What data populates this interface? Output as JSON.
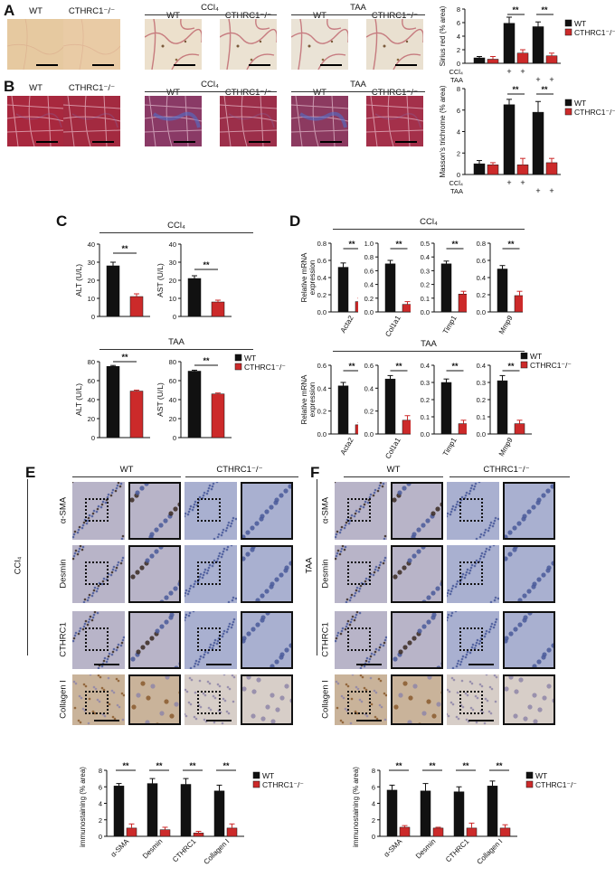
{
  "panels": {
    "A": {
      "label": "A",
      "photo_labels": [
        "WT",
        "CTHRC1⁻/⁻",
        "WT",
        "CTHRC1⁻/⁻",
        "WT",
        "CTHRC1⁻/⁻"
      ],
      "group_ccl4": "CCl₄",
      "group_taa": "TAA",
      "photo_colors": [
        "#e6c9a0",
        "#e9cba5",
        "#ece0cc",
        "#ebe2d2",
        "#eae3d6",
        "#e9e0d0"
      ]
    },
    "B": {
      "label": "B",
      "photo_labels": [
        "WT",
        "CTHRC1⁻/⁻",
        "WT",
        "CTHRC1⁻/⁻",
        "WT",
        "CTHRC1⁻/⁻"
      ],
      "group_ccl4": "CCl₄",
      "group_taa": "TAA",
      "photo_colors": [
        "#a8283e",
        "#a32a40",
        "#8a3a66",
        "#9c2f4a",
        "#8c3a60",
        "#a4304a"
      ]
    },
    "C": {
      "label": "C",
      "group_ccl4": "CCl₄",
      "group_taa": "TAA"
    },
    "D": {
      "label": "D",
      "group_ccl4": "CCl₄",
      "group_taa": "TAA"
    },
    "E": {
      "label": "E",
      "col_wt": "WT",
      "col_ko": "CTHRC1⁻/⁻",
      "side_group": "CCl₄",
      "rows": [
        "α-SMA",
        "Desmin",
        "CTHRC1",
        "Collagen I"
      ]
    },
    "F": {
      "label": "F",
      "col_wt": "WT",
      "col_ko": "CTHRC1⁻/⁻",
      "side_group": "TAA",
      "rows": [
        "α-SMA",
        "Desmin",
        "CTHRC1",
        "Collagen I"
      ]
    }
  },
  "colors": {
    "wt": "#111111",
    "ko": "#cc2a2a"
  },
  "chart_data": [
    {
      "id": "A",
      "type": "bar",
      "ylabel": "Sirius red (% area)",
      "ylim": [
        0,
        8
      ],
      "yticks": [
        0,
        2,
        4,
        6,
        8
      ],
      "series": [
        {
          "name": "WT",
          "values": [
            0.8,
            5.9,
            5.4
          ]
        },
        {
          "name": "CTHRC1⁻/⁻",
          "values": [
            0.6,
            1.5,
            1.1
          ]
        }
      ],
      "errors": [
        [
          0.2,
          0.9,
          0.7
        ],
        [
          0.4,
          0.5,
          0.4
        ]
      ],
      "sig": [
        "",
        "**",
        "**"
      ],
      "treatment_rows": [
        {
          "label": "CCl₄",
          "marks": [
            "",
            "",
            "+",
            "+",
            "",
            ""
          ]
        },
        {
          "label": "TAA",
          "marks": [
            "",
            "",
            "",
            "",
            "+",
            "+"
          ]
        }
      ],
      "legend": [
        "WT",
        "CTHRC1⁻/⁻"
      ]
    },
    {
      "id": "B",
      "type": "bar",
      "ylabel": "Masson's trichrome (% area)",
      "ylim": [
        0,
        8
      ],
      "yticks": [
        0,
        2,
        4,
        6,
        8
      ],
      "series": [
        {
          "name": "WT",
          "values": [
            1.0,
            6.5,
            5.8
          ]
        },
        {
          "name": "CTHRC1⁻/⁻",
          "values": [
            0.9,
            0.9,
            1.1
          ]
        }
      ],
      "errors": [
        [
          0.3,
          0.5,
          1.0
        ],
        [
          0.2,
          0.6,
          0.4
        ]
      ],
      "sig": [
        "",
        "**",
        "**"
      ],
      "treatment_rows": [
        {
          "label": "CCl₄",
          "marks": [
            "",
            "",
            "+",
            "+",
            "",
            ""
          ]
        },
        {
          "label": "TAA",
          "marks": [
            "",
            "",
            "",
            "",
            "+",
            "+"
          ]
        }
      ],
      "legend": [
        "WT",
        "CTHRC1⁻/⁻"
      ]
    },
    {
      "id": "C1",
      "type": "bar",
      "ylabel": "ALT (U/L)",
      "ylim": [
        0,
        40
      ],
      "yticks": [
        0,
        10,
        20,
        30,
        40
      ],
      "values": [
        28,
        11
      ],
      "errors": [
        2,
        1.5
      ],
      "sig": "**"
    },
    {
      "id": "C2",
      "type": "bar",
      "ylabel": "AST (U/L)",
      "ylim": [
        0,
        40
      ],
      "yticks": [
        0,
        10,
        20,
        30,
        40
      ],
      "values": [
        21,
        8
      ],
      "errors": [
        1.5,
        1
      ],
      "sig": "**"
    },
    {
      "id": "C3",
      "type": "bar",
      "ylabel": "ALT (U/L)",
      "ylim": [
        0,
        80
      ],
      "yticks": [
        0,
        20,
        40,
        60,
        80
      ],
      "values": [
        75,
        49
      ],
      "errors": [
        1,
        1
      ],
      "sig": "**"
    },
    {
      "id": "C4",
      "type": "bar",
      "ylabel": "AST (U/L)",
      "ylim": [
        0,
        80
      ],
      "yticks": [
        0,
        20,
        40,
        60,
        80
      ],
      "values": [
        70,
        46
      ],
      "errors": [
        1,
        1
      ],
      "sig": "**",
      "legend": [
        "WT",
        "CTHRC1⁻/⁻"
      ]
    },
    {
      "id": "D1",
      "type": "bar",
      "ylabel": "Relative mRNA expression",
      "xlabel": "Acta2",
      "ylim": [
        0,
        0.8
      ],
      "yticks": [
        0.0,
        0.2,
        0.4,
        0.6,
        0.8
      ],
      "values": [
        0.52,
        0.12
      ],
      "errors": [
        0.05,
        0.04
      ],
      "sig": "**"
    },
    {
      "id": "D2",
      "type": "bar",
      "xlabel": "Col1a1",
      "ylim": [
        0,
        1.0
      ],
      "yticks": [
        0.0,
        0.2,
        0.4,
        0.6,
        0.8,
        1.0
      ],
      "values": [
        0.7,
        0.11
      ],
      "errors": [
        0.05,
        0.04
      ],
      "sig": "**"
    },
    {
      "id": "D3",
      "type": "bar",
      "xlabel": "Timp1",
      "ylim": [
        0,
        0.5
      ],
      "yticks": [
        0.0,
        0.1,
        0.2,
        0.3,
        0.4,
        0.5
      ],
      "values": [
        0.35,
        0.13
      ],
      "errors": [
        0.02,
        0.02
      ],
      "sig": "**"
    },
    {
      "id": "D4",
      "type": "bar",
      "xlabel": "Mmp9",
      "ylim": [
        0,
        0.8
      ],
      "yticks": [
        0.0,
        0.2,
        0.4,
        0.6,
        0.8
      ],
      "values": [
        0.5,
        0.19
      ],
      "errors": [
        0.04,
        0.05
      ],
      "sig": "**"
    },
    {
      "id": "D5",
      "type": "bar",
      "ylabel": "Relative mRNA expression",
      "xlabel": "Acta2",
      "ylim": [
        0,
        0.6
      ],
      "yticks": [
        0.0,
        0.2,
        0.4,
        0.6
      ],
      "values": [
        0.42,
        0.08
      ],
      "errors": [
        0.03,
        0.02
      ],
      "sig": "**"
    },
    {
      "id": "D6",
      "type": "bar",
      "xlabel": "Col1a1",
      "ylim": [
        0,
        0.6
      ],
      "yticks": [
        0.0,
        0.2,
        0.4,
        0.6
      ],
      "values": [
        0.48,
        0.12
      ],
      "errors": [
        0.03,
        0.04
      ],
      "sig": "**"
    },
    {
      "id": "D7",
      "type": "bar",
      "xlabel": "Timp1",
      "ylim": [
        0,
        0.4
      ],
      "yticks": [
        0.0,
        0.1,
        0.2,
        0.3,
        0.4
      ],
      "values": [
        0.3,
        0.06
      ],
      "errors": [
        0.02,
        0.02
      ],
      "sig": "**"
    },
    {
      "id": "D8",
      "type": "bar",
      "xlabel": "Mmp9",
      "ylim": [
        0,
        0.4
      ],
      "yticks": [
        0.0,
        0.1,
        0.2,
        0.3,
        0.4
      ],
      "values": [
        0.31,
        0.06
      ],
      "errors": [
        0.03,
        0.02
      ],
      "sig": "**",
      "legend": [
        "WT",
        "CTHRC1⁻/⁻"
      ]
    },
    {
      "id": "E",
      "type": "bar",
      "ylabel": "immunostaining (% area)",
      "ylim": [
        0,
        8
      ],
      "yticks": [
        0,
        2,
        4,
        6,
        8
      ],
      "categories": [
        "α-SMA",
        "Desmin",
        "CTHRC1",
        "Collagen I"
      ],
      "series": [
        {
          "name": "WT",
          "values": [
            6.1,
            6.4,
            6.3,
            5.5
          ]
        },
        {
          "name": "CTHRC1⁻/⁻",
          "values": [
            1.0,
            0.8,
            0.4,
            1.0
          ]
        }
      ],
      "errors": [
        [
          0.3,
          0.6,
          0.7,
          0.7
        ],
        [
          0.5,
          0.3,
          0.2,
          0.5
        ]
      ],
      "sig": [
        "**",
        "**",
        "**",
        "**"
      ],
      "legend": [
        "WT",
        "CTHRC1⁻/⁻"
      ]
    },
    {
      "id": "F",
      "type": "bar",
      "ylabel": "immunostaining (% area)",
      "ylim": [
        0,
        8
      ],
      "yticks": [
        0,
        2,
        4,
        6,
        8
      ],
      "categories": [
        "α-SMA",
        "Desmin",
        "CTHRC1",
        "Collagen I"
      ],
      "series": [
        {
          "name": "WT",
          "values": [
            5.6,
            5.5,
            5.4,
            6.1
          ]
        },
        {
          "name": "CTHRC1⁻/⁻",
          "values": [
            1.1,
            1.0,
            1.0,
            1.0
          ]
        }
      ],
      "errors": [
        [
          0.6,
          0.9,
          0.6,
          0.6
        ],
        [
          0.2,
          0.1,
          0.6,
          0.4
        ]
      ],
      "sig": [
        "**",
        "**",
        "**",
        "**"
      ],
      "legend": [
        "WT",
        "CTHRC1⁻/⁻"
      ]
    }
  ]
}
